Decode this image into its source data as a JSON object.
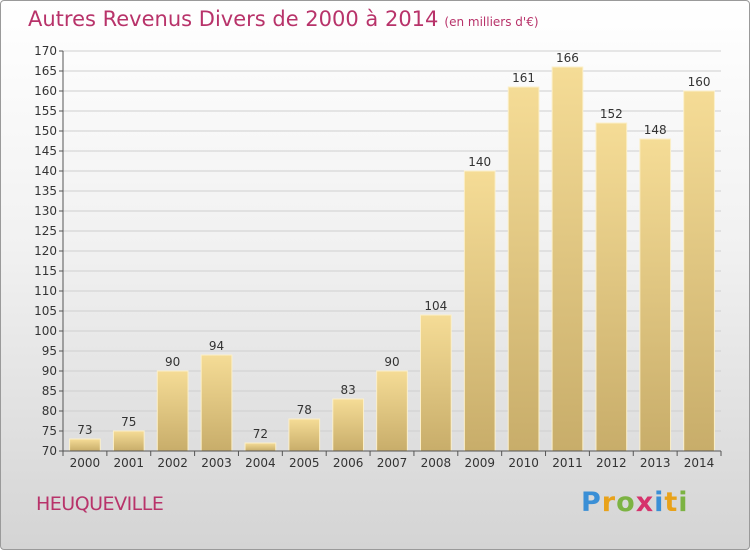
{
  "header": {
    "title": "Autres Revenus Divers de 2000 à 2014",
    "unit": "(en milliers d'€)"
  },
  "footer": {
    "city": "HEUQUEVILLE",
    "logo": "Proxiti"
  },
  "colors": {
    "title": "#b8336a",
    "bar_light": "#f5dc96",
    "bar_dark": "#c8ad6a",
    "grid": "#cfcfcf"
  },
  "chart_data": {
    "type": "bar",
    "title": "Autres Revenus Divers de 2000 à 2014",
    "subtitle": "(en milliers d'€)",
    "xlabel": "",
    "ylabel": "",
    "categories": [
      "2000",
      "2001",
      "2002",
      "2003",
      "2004",
      "2005",
      "2006",
      "2007",
      "2008",
      "2009",
      "2010",
      "2011",
      "2012",
      "2013",
      "2014"
    ],
    "values": [
      73,
      75,
      90,
      94,
      72,
      78,
      83,
      90,
      104,
      140,
      161,
      166,
      152,
      148,
      160
    ],
    "ylim": [
      70,
      170
    ],
    "ytick_step": 5,
    "grid": true,
    "data_labels": true
  }
}
